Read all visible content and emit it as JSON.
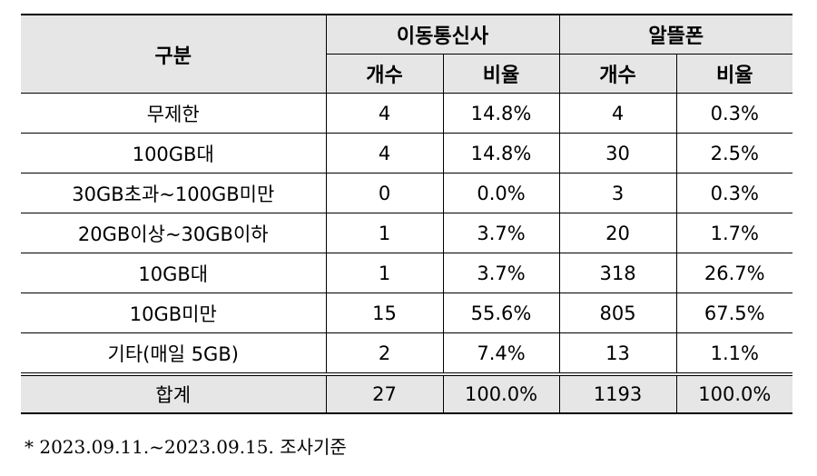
{
  "table": {
    "header": {
      "category": "구분",
      "group1": "이동통신사",
      "group2": "알뜰폰",
      "count": "개수",
      "ratio": "비율"
    },
    "rows": [
      {
        "label": "무제한",
        "telco_count": "4",
        "telco_ratio": "14.8%",
        "mvno_count": "4",
        "mvno_ratio": "0.3%"
      },
      {
        "label": "100GB대",
        "telco_count": "4",
        "telco_ratio": "14.8%",
        "mvno_count": "30",
        "mvno_ratio": "2.5%"
      },
      {
        "label": "30GB초과~100GB미만",
        "telco_count": "0",
        "telco_ratio": "0.0%",
        "mvno_count": "3",
        "mvno_ratio": "0.3%"
      },
      {
        "label": "20GB이상~30GB이하",
        "telco_count": "1",
        "telco_ratio": "3.7%",
        "mvno_count": "20",
        "mvno_ratio": "1.7%"
      },
      {
        "label": "10GB대",
        "telco_count": "1",
        "telco_ratio": "3.7%",
        "mvno_count": "318",
        "mvno_ratio": "26.7%"
      },
      {
        "label": "10GB미만",
        "telco_count": "15",
        "telco_ratio": "55.6%",
        "mvno_count": "805",
        "mvno_ratio": "67.5%"
      },
      {
        "label": "기타(매일 5GB)",
        "telco_count": "2",
        "telco_ratio": "7.4%",
        "mvno_count": "13",
        "mvno_ratio": "1.1%"
      }
    ],
    "total": {
      "label": "합계",
      "telco_count": "27",
      "telco_ratio": "100.0%",
      "mvno_count": "1193",
      "mvno_ratio": "100.0%"
    }
  },
  "footnote": "* 2023.09.11.~2023.09.15. 조사기준"
}
